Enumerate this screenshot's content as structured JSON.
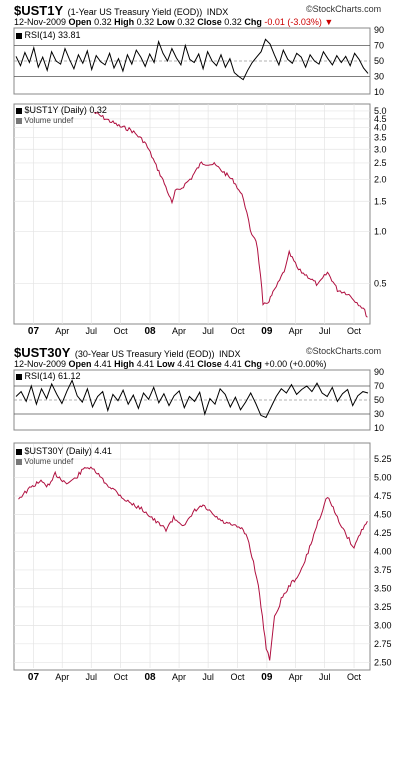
{
  "brand": "©StockCharts.com",
  "charts": [
    {
      "symbol": "$UST1Y",
      "description": "(1-Year US Treasury Yield (EOD))",
      "exchange": "INDX",
      "date": "12-Nov-2009",
      "open_label": "Open",
      "open": "0.32",
      "high_label": "High",
      "high": "0.32",
      "low_label": "Low",
      "low": "0.32",
      "close_label": "Close",
      "close": "0.32",
      "chg_label": "Chg",
      "chg": "-0.01 (-3.03%)",
      "chg_arrow": "▼",
      "rsi_label": "RSI(14) 33.81",
      "price_label": "$UST1Y (Daily) 0.32",
      "volume_label": "Volume undef"
    },
    {
      "symbol": "$UST30Y",
      "description": "(30-Year US Treasury Yield (EOD))",
      "exchange": "INDX",
      "date": "12-Nov-2009",
      "open_label": "Open",
      "open": "4.41",
      "high_label": "High",
      "high": "4.41",
      "low_label": "Low",
      "low": "4.41",
      "close_label": "Close",
      "close": "4.41",
      "chg_label": "Chg",
      "chg": "+0.00 (+0.00%)",
      "chg_arrow": "",
      "rsi_label": "RSI(14) 61.12",
      "price_label": "$UST30Y (Daily) 4.41",
      "volume_label": "Volume undef"
    }
  ],
  "chart_data": [
    {
      "type": "line",
      "series_panel": "rsi",
      "chart": "$UST1Y",
      "yticks": [
        10,
        30,
        50,
        70,
        90
      ],
      "ylim": [
        10,
        90
      ],
      "reference_lines": [
        30,
        50,
        70
      ],
      "values": [
        56,
        44,
        61,
        48,
        67,
        42,
        55,
        38,
        62,
        50,
        46,
        66,
        52,
        40,
        58,
        47,
        63,
        39,
        57,
        49,
        45,
        60,
        41,
        53,
        37,
        58,
        46,
        64,
        55,
        43,
        59,
        48,
        75,
        60,
        50,
        66,
        54,
        45,
        70,
        52,
        48,
        59,
        40,
        62,
        50,
        44,
        58,
        42,
        53,
        35,
        30,
        26,
        38,
        48,
        55,
        62,
        78,
        72,
        58,
        45,
        64,
        52,
        47,
        60,
        55,
        42,
        58,
        50,
        46,
        62,
        53,
        45,
        57,
        48,
        56,
        44,
        60,
        52,
        41,
        34
      ],
      "color": "#000000"
    },
    {
      "type": "line",
      "chart": "$UST1Y",
      "scale": "log",
      "yticks": [
        0.5,
        1.0,
        1.5,
        2.0,
        2.5,
        3.0,
        3.5,
        4.0,
        4.5,
        5.0
      ],
      "ytick_labels": [
        "0.5",
        "1.0",
        "1.5",
        "2.0",
        "2.5",
        "3.0",
        "3.5",
        "4.0",
        "4.5",
        "5.0"
      ],
      "ylim": [
        0.3,
        5.2
      ],
      "x_labels": [
        "07",
        "Apr",
        "Jul",
        "Oct",
        "08",
        "Apr",
        "Jul",
        "Oct",
        "09",
        "Apr",
        "Jul",
        "Oct"
      ],
      "x_label_bold": [
        "07",
        "08",
        "09"
      ],
      "dates": [
        "2007-07-10",
        "2007-08-15",
        "2007-09-30",
        "2007-11-01",
        "2007-12-15",
        "2008-01-20",
        "2008-02-15",
        "2008-03-10",
        "2008-03-20",
        "2008-04-10",
        "2008-05-10",
        "2008-06-10",
        "2008-07-20",
        "2008-08-20",
        "2008-09-20",
        "2008-10-20",
        "2008-11-10",
        "2008-11-28",
        "2008-12-12",
        "2008-12-20",
        "2009-01-08",
        "2009-01-20",
        "2009-02-10",
        "2009-03-01",
        "2009-03-12",
        "2009-04-10",
        "2009-05-10",
        "2009-06-10",
        "2009-07-10",
        "2009-08-10",
        "2009-09-10",
        "2009-10-10",
        "2009-10-30",
        "2009-11-12"
      ],
      "values": [
        4.9,
        4.5,
        4.05,
        3.9,
        3.3,
        2.4,
        1.9,
        1.45,
        1.7,
        1.8,
        2.05,
        2.5,
        2.45,
        2.2,
        1.95,
        1.55,
        1.0,
        0.9,
        0.55,
        0.37,
        0.4,
        0.44,
        0.52,
        0.62,
        0.75,
        0.6,
        0.55,
        0.49,
        0.58,
        0.46,
        0.44,
        0.39,
        0.36,
        0.32
      ],
      "color": "#b01040"
    },
    {
      "type": "line",
      "series_panel": "rsi",
      "chart": "$UST30Y",
      "yticks": [
        10,
        30,
        50,
        70,
        90
      ],
      "ylim": [
        10,
        90
      ],
      "reference_lines": [
        30,
        50,
        70
      ],
      "values": [
        55,
        62,
        48,
        70,
        44,
        66,
        52,
        73,
        58,
        45,
        63,
        78,
        56,
        47,
        66,
        40,
        55,
        62,
        35,
        58,
        49,
        64,
        44,
        57,
        38,
        60,
        51,
        68,
        46,
        59,
        42,
        56,
        63,
        39,
        55,
        48,
        61,
        30,
        52,
        44,
        66,
        58,
        40,
        54,
        36,
        47,
        60,
        45,
        28,
        25,
        40,
        55,
        66,
        60,
        72,
        58,
        65,
        70,
        62,
        74,
        60,
        55,
        68,
        48,
        59,
        65,
        42,
        56,
        62,
        60
      ],
      "color": "#000000"
    },
    {
      "type": "line",
      "chart": "$UST30Y",
      "yticks": [
        2.5,
        2.75,
        3.0,
        3.25,
        3.5,
        3.75,
        4.0,
        4.25,
        4.5,
        4.75,
        5.0,
        5.25
      ],
      "ytick_labels": [
        "2.50",
        "2.75",
        "3.00",
        "3.25",
        "3.50",
        "3.75",
        "4.00",
        "4.25",
        "4.50",
        "4.75",
        "5.00",
        "5.25"
      ],
      "ylim": [
        2.45,
        5.4
      ],
      "x_labels": [
        "07",
        "Apr",
        "Jul",
        "Oct",
        "08",
        "Apr",
        "Jul",
        "Oct",
        "09",
        "Apr",
        "Jul",
        "Oct"
      ],
      "x_label_bold": [
        "07",
        "08",
        "09"
      ],
      "dates": [
        "2006-11-15",
        "2006-12-20",
        "2007-01-20",
        "2007-02-20",
        "2007-03-10",
        "2007-04-15",
        "2007-05-10",
        "2007-06-15",
        "2007-07-15",
        "2007-08-15",
        "2007-09-15",
        "2007-10-15",
        "2007-11-15",
        "2007-12-15",
        "2008-01-20",
        "2008-02-20",
        "2008-03-15",
        "2008-04-20",
        "2008-05-20",
        "2008-06-15",
        "2008-07-15",
        "2008-08-15",
        "2008-09-15",
        "2008-10-10",
        "2008-11-01",
        "2008-11-20",
        "2008-12-05",
        "2008-12-18",
        "2008-12-30",
        "2009-01-10",
        "2009-01-25",
        "2009-02-15",
        "2009-03-15",
        "2009-04-15",
        "2009-05-15",
        "2009-06-10",
        "2009-07-10",
        "2009-08-10",
        "2009-09-10",
        "2009-10-01",
        "2009-10-20",
        "2009-11-12"
      ],
      "values": [
        4.72,
        4.85,
        4.95,
        4.88,
        5.05,
        4.92,
        4.98,
        5.15,
        5.08,
        4.92,
        4.82,
        4.7,
        4.62,
        4.55,
        4.4,
        4.3,
        4.45,
        4.35,
        4.55,
        4.62,
        4.5,
        4.4,
        4.35,
        4.32,
        4.2,
        3.85,
        3.55,
        3.1,
        2.7,
        2.55,
        3.1,
        3.35,
        3.55,
        3.7,
        4.05,
        4.4,
        4.75,
        4.45,
        4.2,
        4.05,
        4.25,
        4.41
      ],
      "color": "#b01040"
    }
  ]
}
